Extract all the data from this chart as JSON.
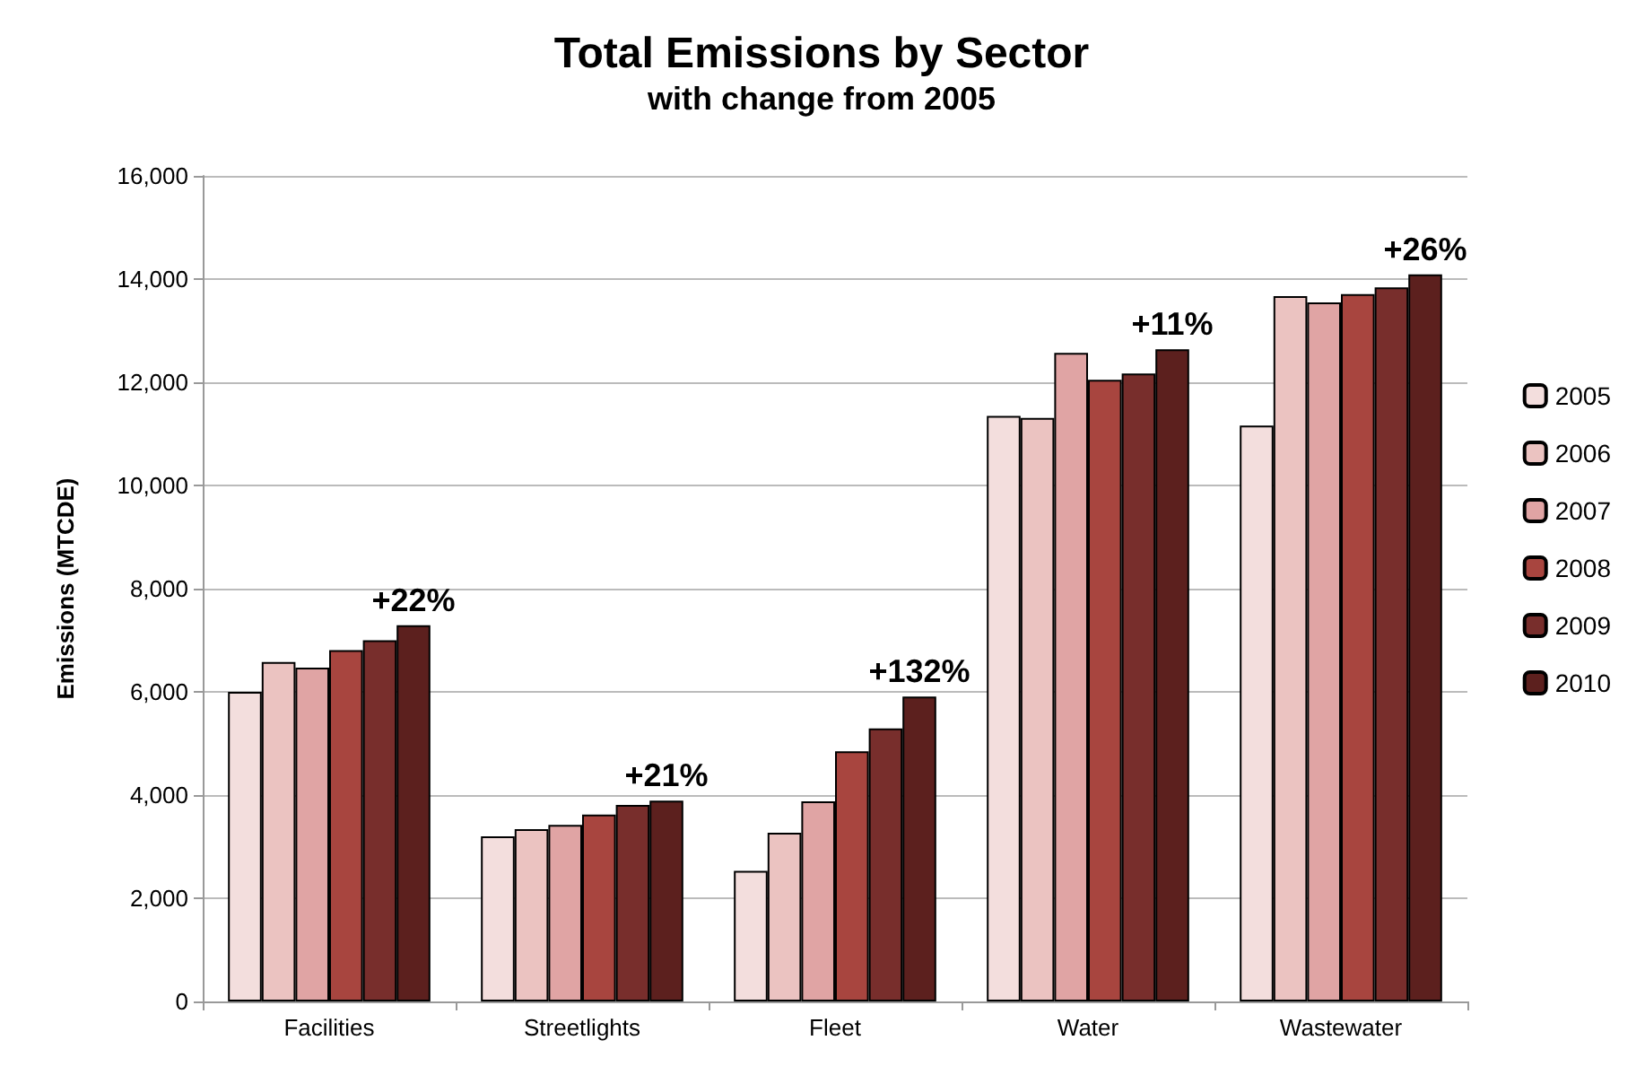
{
  "chart_data": {
    "type": "bar",
    "title": "Total Emissions by Sector",
    "subtitle": "with change from 2005",
    "ylabel": "Emissions (MTCDE)",
    "categories": [
      "Facilities",
      "Streetlights",
      "Fleet",
      "Water",
      "Wastewater"
    ],
    "series": [
      {
        "name": "2005",
        "color": "#f3dedd",
        "values": [
          6000,
          3200,
          2530,
          11350,
          11160
        ]
      },
      {
        "name": "2006",
        "color": "#ebc3c1",
        "values": [
          6580,
          3340,
          3270,
          11310,
          13670
        ]
      },
      {
        "name": "2007",
        "color": "#e0a4a4",
        "values": [
          6470,
          3420,
          3880,
          12570,
          13550
        ]
      },
      {
        "name": "2008",
        "color": "#a8453f",
        "values": [
          6810,
          3620,
          4850,
          12050,
          13710
        ]
      },
      {
        "name": "2009",
        "color": "#782e2c",
        "values": [
          7000,
          3810,
          5290,
          12170,
          13840
        ]
      },
      {
        "name": "2010",
        "color": "#5c201e",
        "values": [
          7290,
          3890,
          5910,
          12640,
          14090
        ]
      }
    ],
    "annotations": [
      "+22%",
      "+21%",
      "+132%",
      "+11%",
      "+26%"
    ],
    "ylim": [
      0,
      16000
    ],
    "yticks": [
      0,
      {
        "value": 2000,
        "label": "2,000"
      },
      {
        "value": 4000,
        "label": "4,000"
      },
      {
        "value": 6000,
        "label": "6,000"
      },
      {
        "value": 8000,
        "label": "8,000"
      },
      {
        "value": 10000,
        "label": "10,000"
      },
      {
        "value": 12000,
        "label": "12,000"
      },
      {
        "value": 14000,
        "label": "14,000"
      },
      {
        "value": 16000,
        "label": "16,000"
      }
    ],
    "grid": "y",
    "legend": "right"
  }
}
